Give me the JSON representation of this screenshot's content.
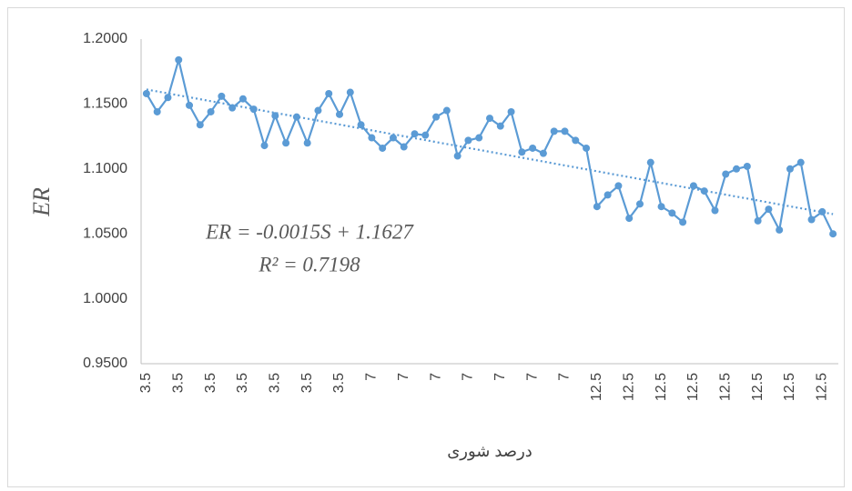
{
  "chart_data": {
    "type": "line",
    "y_label": "ER",
    "x_label": "درصد شوری",
    "categories": [
      "3.5",
      null,
      null,
      "3.5",
      null,
      null,
      "3.5",
      null,
      null,
      "3.5",
      null,
      null,
      "3.5",
      null,
      null,
      "3.5",
      null,
      null,
      "3.5",
      null,
      null,
      "7",
      null,
      null,
      "7",
      null,
      null,
      "7",
      null,
      null,
      "7",
      null,
      null,
      "7",
      null,
      null,
      "7",
      null,
      null,
      "7",
      null,
      null,
      "12.5",
      null,
      null,
      "12.5",
      null,
      null,
      "12.5",
      null,
      null,
      "12.5",
      null,
      null,
      "12.5",
      null,
      null,
      "12.5",
      null,
      null,
      "12.5",
      null,
      null,
      "12.5",
      null
    ],
    "series": [
      {
        "name": "ER",
        "color": "#5b9bd5",
        "values": [
          1.158,
          1.144,
          1.155,
          1.184,
          1.149,
          1.134,
          1.144,
          1.156,
          1.147,
          1.154,
          1.146,
          1.118,
          1.141,
          1.12,
          1.14,
          1.12,
          1.145,
          1.158,
          1.142,
          1.159,
          1.134,
          1.124,
          1.116,
          1.124,
          1.117,
          1.127,
          1.126,
          1.14,
          1.145,
          1.11,
          1.122,
          1.124,
          1.139,
          1.133,
          1.144,
          1.113,
          1.116,
          1.112,
          1.129,
          1.129,
          1.122,
          1.116,
          1.071,
          1.08,
          1.087,
          1.062,
          1.073,
          1.105,
          1.071,
          1.066,
          1.059,
          1.087,
          1.083,
          1.068,
          1.096,
          1.1,
          1.102,
          1.06,
          1.069,
          1.053,
          1.1,
          1.105,
          1.061,
          1.067,
          1.05
        ]
      }
    ],
    "trendline": {
      "slope": -0.0015,
      "intercept": 1.1627,
      "style": "dotted",
      "color": "#5b9bd5",
      "equation": "ER = -0.0015S + 1.1627",
      "r_squared": "R² = 0.7198"
    },
    "ylim": [
      0.95,
      1.2
    ],
    "yticks": [
      {
        "value": 0.95,
        "label": "0.9500"
      },
      {
        "value": 1.0,
        "label": "1.0000"
      },
      {
        "value": 1.05,
        "label": "1.0500"
      },
      {
        "value": 1.1,
        "label": "1.1000"
      },
      {
        "value": 1.15,
        "label": "1.1500"
      },
      {
        "value": 1.2,
        "label": "1.2000"
      }
    ],
    "grid": false
  }
}
